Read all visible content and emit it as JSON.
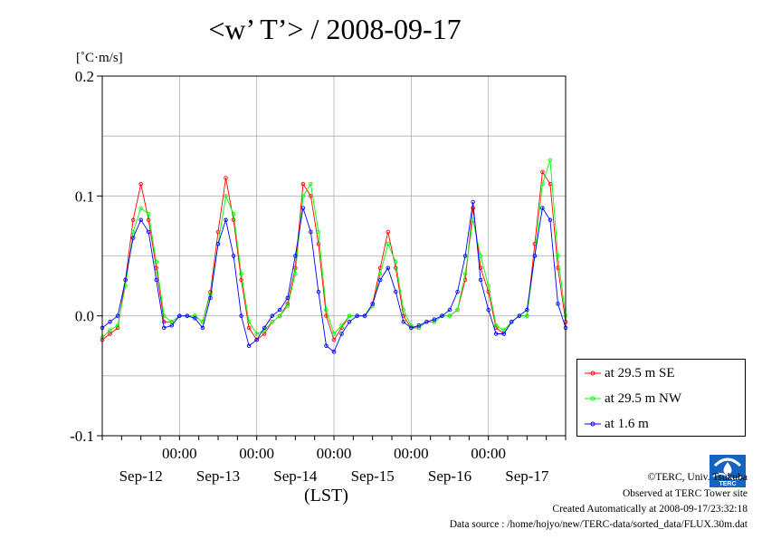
{
  "chart_data": {
    "type": "line",
    "title": "<w’ T’> / 2008-09-17",
    "ylabel": "[˚C·m/s]",
    "xlabel": "(LST)",
    "ylim": [
      -0.1,
      0.2
    ],
    "yticks": [
      "0.2",
      "0.1",
      "0.0",
      "-0.1"
    ],
    "xlim": [
      0,
      6
    ],
    "day_labels": [
      "Sep-12",
      "Sep-13",
      "Sep-14",
      "Sep-15",
      "Sep-16",
      "Sep-17"
    ],
    "time_labels": [
      "00:00",
      "00:00",
      "00:00",
      "00:00",
      "00:00"
    ],
    "grid": true,
    "legend_position": "bottom-right",
    "series": [
      {
        "name": "at 29.5 m SE",
        "color": "#ff0000",
        "x": [
          0.0,
          0.1,
          0.2,
          0.3,
          0.4,
          0.5,
          0.6,
          0.7,
          0.8,
          0.9,
          1.0,
          1.1,
          1.2,
          1.3,
          1.4,
          1.5,
          1.6,
          1.7,
          1.8,
          1.9,
          2.0,
          2.1,
          2.2,
          2.3,
          2.4,
          2.5,
          2.6,
          2.7,
          2.8,
          2.9,
          3.0,
          3.1,
          3.2,
          3.3,
          3.4,
          3.5,
          3.6,
          3.7,
          3.8,
          3.9,
          4.0,
          4.1,
          4.2,
          4.3,
          4.4,
          4.5,
          4.6,
          4.7,
          4.8,
          4.9,
          5.0,
          5.1,
          5.2,
          5.3,
          5.4,
          5.5,
          5.6,
          5.7,
          5.8,
          5.9,
          6.0
        ],
        "y": [
          -0.02,
          -0.015,
          -0.01,
          0.03,
          0.08,
          0.11,
          0.08,
          0.04,
          -0.005,
          -0.005,
          0.0,
          0.0,
          0.0,
          -0.005,
          0.02,
          0.07,
          0.115,
          0.08,
          0.03,
          -0.01,
          -0.02,
          -0.015,
          -0.005,
          0.0,
          0.01,
          0.04,
          0.11,
          0.1,
          0.06,
          0.0,
          -0.02,
          -0.01,
          0.0,
          0.0,
          0.0,
          0.01,
          0.04,
          0.07,
          0.04,
          0.0,
          -0.01,
          -0.01,
          -0.005,
          -0.005,
          0.0,
          0.0,
          0.005,
          0.03,
          0.09,
          0.04,
          0.02,
          -0.01,
          -0.015,
          -0.005,
          0.0,
          0.0,
          0.06,
          0.12,
          0.11,
          0.04,
          -0.005
        ]
      },
      {
        "name": "at 29.5 m NW",
        "color": "#00ff00",
        "x": [
          0.0,
          0.1,
          0.2,
          0.3,
          0.4,
          0.5,
          0.6,
          0.7,
          0.8,
          0.9,
          1.0,
          1.1,
          1.2,
          1.3,
          1.4,
          1.5,
          1.6,
          1.7,
          1.8,
          1.9,
          2.0,
          2.1,
          2.2,
          2.3,
          2.4,
          2.5,
          2.6,
          2.7,
          2.8,
          2.9,
          3.0,
          3.1,
          3.2,
          3.3,
          3.4,
          3.5,
          3.6,
          3.7,
          3.8,
          3.9,
          4.0,
          4.1,
          4.2,
          4.3,
          4.4,
          4.5,
          4.6,
          4.7,
          4.8,
          4.9,
          5.0,
          5.1,
          5.2,
          5.3,
          5.4,
          5.5,
          5.6,
          5.7,
          5.8,
          5.9,
          6.0
        ],
        "y": [
          -0.018,
          -0.012,
          -0.008,
          0.025,
          0.07,
          0.09,
          0.085,
          0.045,
          0.0,
          -0.005,
          0.0,
          0.0,
          0.0,
          -0.005,
          0.018,
          0.06,
          0.1,
          0.085,
          0.035,
          -0.005,
          -0.015,
          -0.012,
          -0.005,
          0.0,
          0.008,
          0.035,
          0.1,
          0.11,
          0.07,
          0.005,
          -0.015,
          -0.008,
          0.0,
          0.0,
          0.0,
          0.008,
          0.035,
          0.06,
          0.045,
          0.005,
          -0.008,
          -0.01,
          -0.005,
          -0.005,
          0.0,
          0.0,
          0.005,
          0.035,
          0.08,
          0.05,
          0.025,
          -0.008,
          -0.012,
          -0.005,
          0.0,
          0.0,
          0.05,
          0.11,
          0.13,
          0.05,
          0.0
        ]
      },
      {
        "name": "at 1.6 m",
        "color": "#0000ff",
        "x": [
          0.0,
          0.1,
          0.2,
          0.3,
          0.4,
          0.5,
          0.6,
          0.7,
          0.8,
          0.9,
          1.0,
          1.1,
          1.2,
          1.3,
          1.4,
          1.5,
          1.6,
          1.7,
          1.8,
          1.9,
          2.0,
          2.1,
          2.2,
          2.3,
          2.4,
          2.5,
          2.6,
          2.7,
          2.8,
          2.9,
          3.0,
          3.1,
          3.2,
          3.3,
          3.4,
          3.5,
          3.6,
          3.7,
          3.8,
          3.9,
          4.0,
          4.1,
          4.2,
          4.3,
          4.4,
          4.5,
          4.6,
          4.7,
          4.8,
          4.9,
          5.0,
          5.1,
          5.2,
          5.3,
          5.4,
          5.5,
          5.6,
          5.7,
          5.8,
          5.9,
          6.0
        ],
        "y": [
          -0.01,
          -0.005,
          0.0,
          0.03,
          0.065,
          0.08,
          0.07,
          0.03,
          -0.01,
          -0.008,
          0.0,
          0.0,
          -0.002,
          -0.01,
          0.015,
          0.06,
          0.08,
          0.05,
          0.0,
          -0.025,
          -0.02,
          -0.01,
          0.0,
          0.005,
          0.015,
          0.05,
          0.09,
          0.07,
          0.02,
          -0.025,
          -0.03,
          -0.015,
          -0.005,
          0.0,
          0.0,
          0.01,
          0.03,
          0.04,
          0.02,
          -0.005,
          -0.01,
          -0.008,
          -0.005,
          -0.003,
          0.0,
          0.005,
          0.02,
          0.05,
          0.095,
          0.03,
          0.005,
          -0.015,
          -0.015,
          -0.005,
          0.0,
          0.005,
          0.05,
          0.09,
          0.08,
          0.01,
          -0.01
        ]
      }
    ]
  },
  "footer": {
    "copyright": "©TERC, Univ. Tsukuba",
    "site": "Observed at TERC Tower site",
    "created": "Created Automatically at 2008-09-17/23:32:18",
    "source": "Data source : /home/hojyo/new/TERC-data/sorted_data/FLUX.30m.dat"
  },
  "logo": {
    "text": "TERC",
    "color": "#1565c0"
  }
}
